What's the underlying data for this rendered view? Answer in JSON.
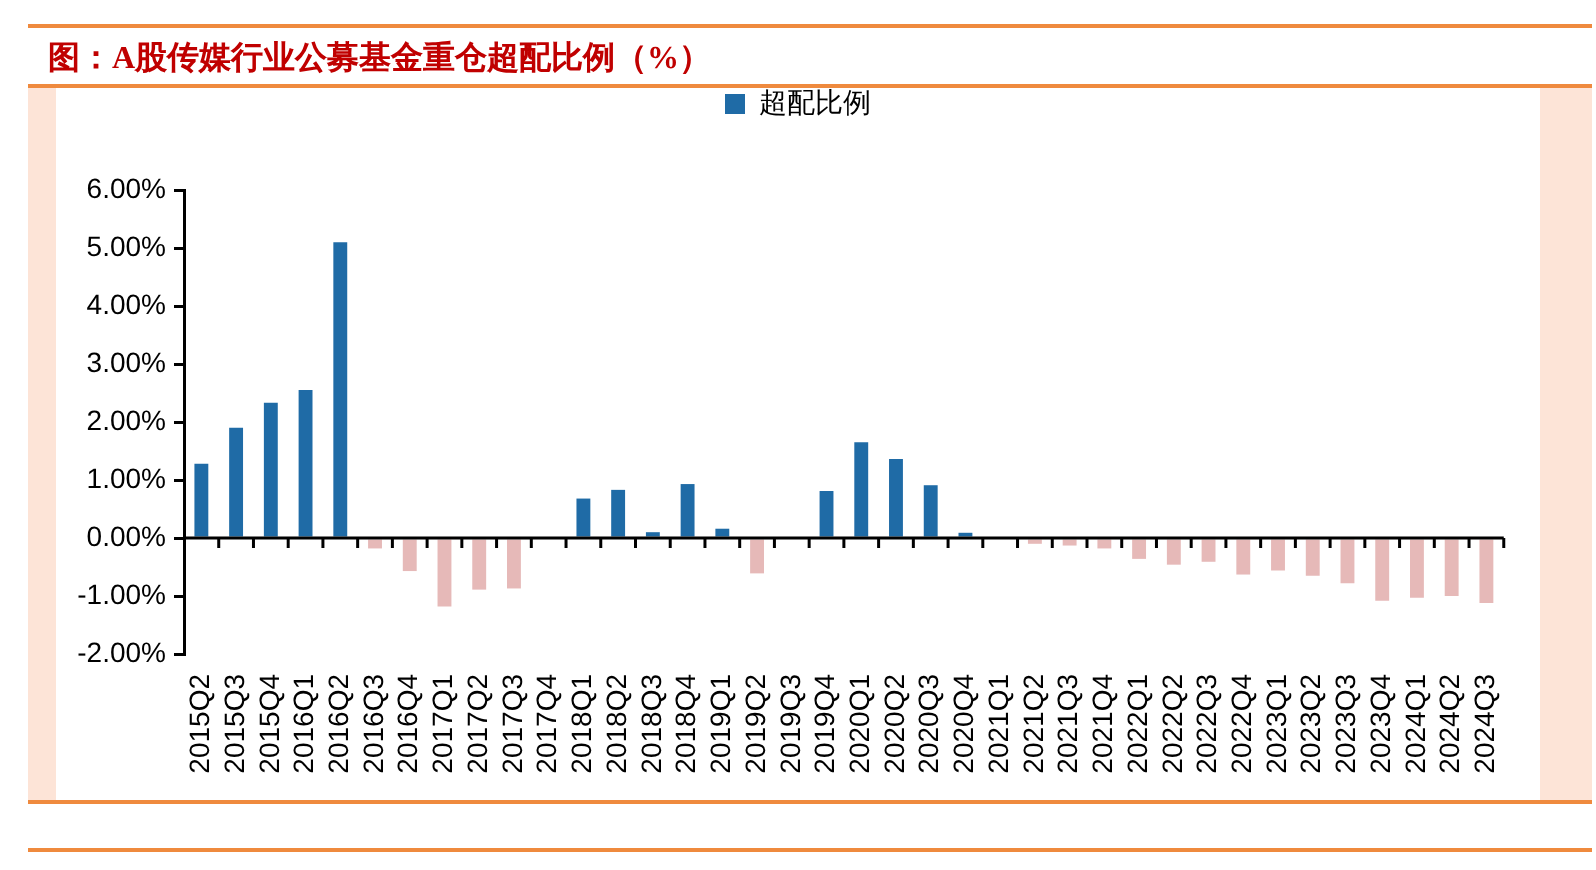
{
  "chart_data": {
    "type": "bar",
    "title": "图：A股传媒行业公募基金重仓超配比例（%）",
    "categories": [
      "2015Q2",
      "2015Q3",
      "2015Q4",
      "2016Q1",
      "2016Q2",
      "2016Q3",
      "2016Q4",
      "2017Q1",
      "2017Q2",
      "2017Q3",
      "2017Q4",
      "2018Q1",
      "2018Q2",
      "2018Q3",
      "2018Q4",
      "2019Q1",
      "2019Q2",
      "2019Q3",
      "2019Q4",
      "2020Q1",
      "2020Q2",
      "2020Q3",
      "2020Q4",
      "2021Q1",
      "2021Q2",
      "2021Q3",
      "2021Q4",
      "2022Q1",
      "2022Q2",
      "2022Q3",
      "2022Q4",
      "2023Q1",
      "2023Q2",
      "2023Q3",
      "2023Q4",
      "2024Q1",
      "2024Q2",
      "2024Q3"
    ],
    "series": [
      {
        "name": "超配比例",
        "color": "#1f6ba6",
        "colors": [
          "#1f6ba6",
          "#1f6ba6",
          "#1f6ba6",
          "#1f6ba6",
          "#1f6ba6",
          "#e6b9b8",
          "#e6b9b8",
          "#e6b9b8",
          "#e6b9b8",
          "#e6b9b8",
          "#1f6ba6",
          "#1f6ba6",
          "#1f6ba6",
          "#1f6ba6",
          "#1f6ba6",
          "#1f6ba6",
          "#e6b9b8",
          "#1f6ba6",
          "#1f6ba6",
          "#1f6ba6",
          "#1f6ba6",
          "#1f6ba6",
          "#1f6ba6",
          "#1f6ba6",
          "#e6b9b8",
          "#e6b9b8",
          "#e6b9b8",
          "#e6b9b8",
          "#e6b9b8",
          "#e6b9b8",
          "#e6b9b8",
          "#e6b9b8",
          "#e6b9b8",
          "#e6b9b8",
          "#e6b9b8",
          "#e6b9b8",
          "#e6b9b8",
          "#e6b9b8"
        ],
        "values": [
          1.28,
          1.9,
          2.33,
          2.55,
          5.1,
          -0.18,
          -0.57,
          -1.18,
          -0.89,
          -0.87,
          null,
          0.68,
          0.83,
          0.1,
          0.93,
          0.16,
          -0.61,
          null,
          0.81,
          1.65,
          1.36,
          0.91,
          0.09,
          null,
          -0.1,
          -0.13,
          -0.18,
          -0.36,
          -0.46,
          -0.41,
          -0.63,
          -0.56,
          -0.65,
          -0.78,
          -1.08,
          -1.03,
          -1,
          -1.12
        ]
      }
    ],
    "ylim": [
      -2,
      6
    ],
    "yticks": [
      {
        "value": -2,
        "label": "-2.00%"
      },
      {
        "value": -1,
        "label": "-1.00%"
      },
      {
        "value": 0,
        "label": "0.00%"
      },
      {
        "value": 1,
        "label": "1.00%"
      },
      {
        "value": 2,
        "label": "2.00%"
      },
      {
        "value": 3,
        "label": "3.00%"
      },
      {
        "value": 4,
        "label": "4.00%"
      },
      {
        "value": 5,
        "label": "5.00%"
      },
      {
        "value": 6,
        "label": "6.00%"
      }
    ],
    "legend": "top"
  }
}
